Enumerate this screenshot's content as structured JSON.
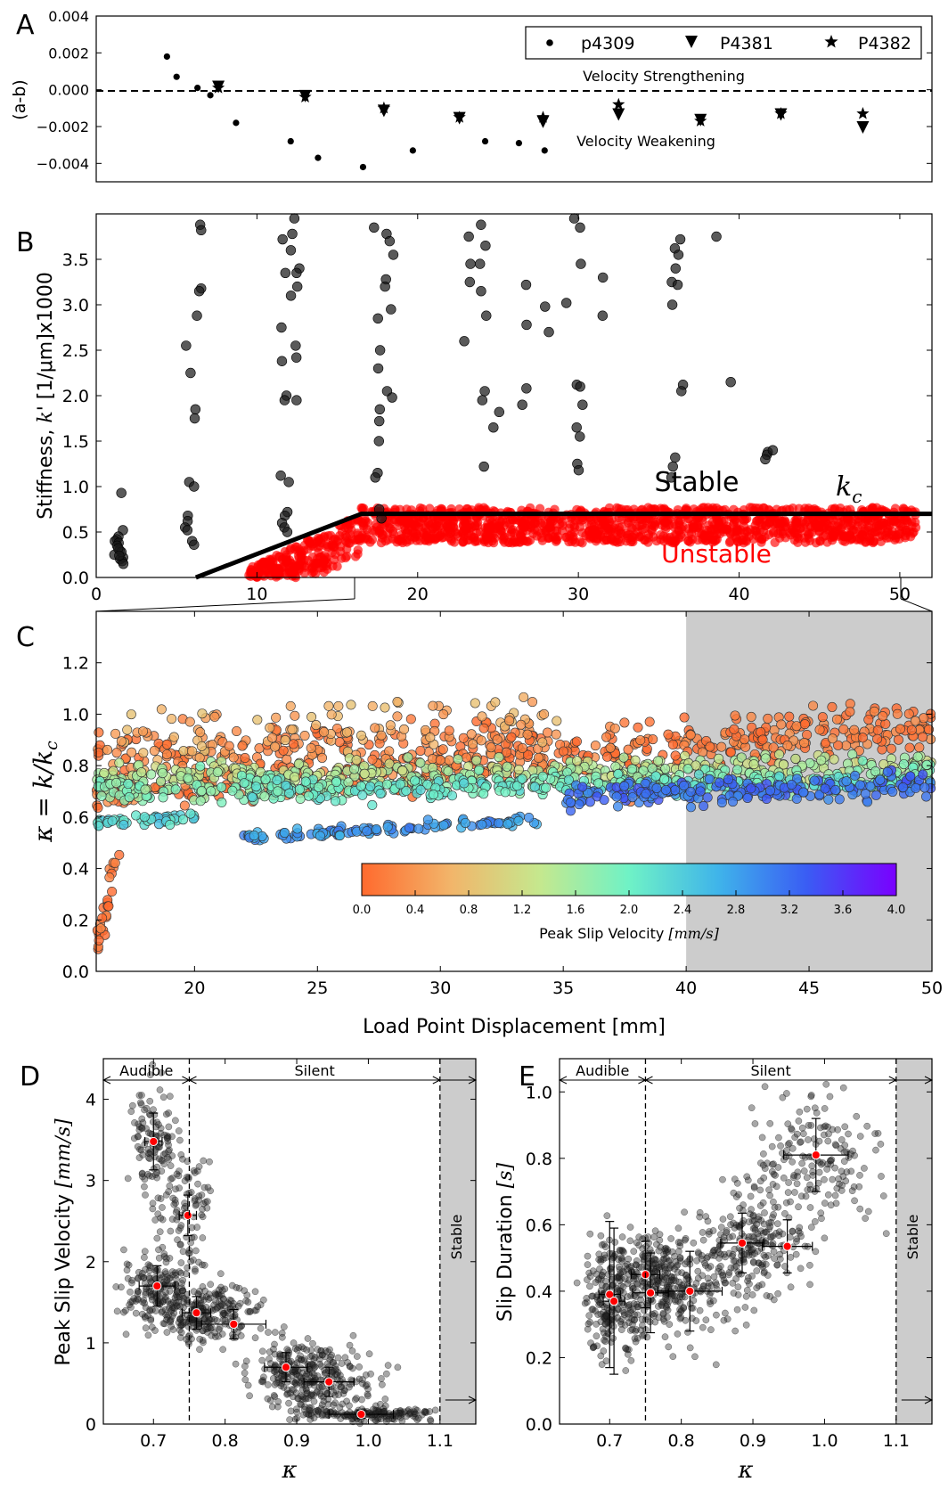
{
  "colors": {
    "black_points": "#222222",
    "unstable": "#ff0000",
    "mean_marker": "#ff0000",
    "shade": "#cccccc",
    "colormap": [
      "#ff6a2e",
      "#f2b56a",
      "#c5e88e",
      "#6ff2c6",
      "#3fb4ea",
      "#3a5cf4",
      "#7a00ff"
    ]
  },
  "chart_data": [
    {
      "panel": "A",
      "type": "scatter",
      "ylabel": "(a-b)",
      "xlim": [
        0,
        52
      ],
      "ylim": [
        -0.005,
        0.004
      ],
      "yticks": [
        "0.004",
        "0.002",
        "0.000",
        "−0.002",
        "−0.004"
      ],
      "reference_line": 0,
      "annotations": [
        "Velocity Strengthening",
        "Velocity Weakening"
      ],
      "legend": {
        "placement": "top-right",
        "entries": [
          "p4309",
          "P4381",
          "P4382"
        ]
      },
      "series": [
        {
          "name": "p4309",
          "marker": "circle",
          "x": [
            4.4,
            5.0,
            6.3,
            7.1,
            8.7,
            12.1,
            13.8,
            16.6,
            19.7,
            24.2,
            26.3,
            27.9
          ],
          "y": [
            0.0018,
            0.0007,
            0.0001,
            -0.0003,
            -0.0018,
            -0.0028,
            -0.0037,
            -0.0042,
            -0.0033,
            -0.0028,
            -0.0029,
            -0.0033
          ]
        },
        {
          "name": "P4381",
          "marker": "triangle-down",
          "x": [
            7.6,
            13.0,
            17.9,
            22.6,
            27.8,
            32.5,
            37.6,
            42.6,
            47.7
          ],
          "y": [
            0.0002,
            -0.0003,
            -0.0011,
            -0.0015,
            -0.0017,
            -0.0013,
            -0.0016,
            -0.0013,
            -0.002
          ]
        },
        {
          "name": "P4382",
          "marker": "star",
          "x": [
            7.6,
            13.0,
            17.9,
            22.6,
            27.8,
            32.5,
            37.6,
            42.6,
            47.7
          ],
          "y": [
            0.0001,
            -0.0004,
            -0.001,
            -0.0015,
            -0.0015,
            -0.0008,
            -0.0017,
            -0.0013,
            -0.0013
          ]
        }
      ]
    },
    {
      "panel": "B",
      "type": "scatter",
      "ylabel": "Stiffness, k' [1/μm]x1000",
      "xlim": [
        0,
        52
      ],
      "ylim": [
        0,
        4.0
      ],
      "xticks": [
        "0",
        "10",
        "20",
        "30",
        "40",
        "50"
      ],
      "yticks": [
        "0.0",
        "0.5",
        "1.0",
        "1.5",
        "2.0",
        "2.5",
        "3.0",
        "3.5"
      ],
      "labels": [
        "Stable",
        "Unstable"
      ],
      "kc_label": "k_c",
      "kc_line": {
        "x": [
          6.2,
          16.5,
          52
        ],
        "y": [
          0.0,
          0.7,
          0.7
        ]
      },
      "stable_groups": [
        {
          "x": 1.4,
          "y": [
            0.93,
            0.52,
            0.45,
            0.42,
            0.4,
            0.38,
            0.35,
            0.3,
            0.25,
            0.22,
            0.2,
            0.18,
            0.15,
            0.28,
            0.32,
            0.24
          ]
        },
        {
          "x": 5.8,
          "y": [
            2.55,
            2.25,
            1.05,
            1.0,
            0.68,
            0.62,
            0.55,
            0.52,
            0.4,
            0.36
          ]
        },
        {
          "x": 6.3,
          "y": [
            3.88,
            3.82,
            3.18,
            3.15,
            2.88,
            1.85,
            1.75
          ]
        },
        {
          "x": 11.7,
          "y": [
            3.72,
            3.35,
            2.75,
            2.38,
            2.0,
            1.95,
            1.12,
            1.05,
            0.72,
            0.68,
            0.6,
            0.55,
            0.5
          ]
        },
        {
          "x": 12.4,
          "y": [
            3.95,
            3.78,
            3.6,
            3.4,
            3.35,
            3.2,
            3.1,
            2.55,
            2.42,
            1.95
          ]
        },
        {
          "x": 17.5,
          "y": [
            3.85,
            2.85,
            2.5,
            2.3,
            1.85,
            1.72,
            1.5,
            1.15,
            1.1,
            0.75,
            0.65
          ]
        },
        {
          "x": 18.2,
          "y": [
            3.78,
            3.7,
            3.55,
            3.28,
            3.2,
            2.95,
            2.05,
            1.98
          ]
        },
        {
          "x": 23.0,
          "y": [
            3.75,
            3.45,
            3.25,
            2.6
          ]
        },
        {
          "x": 24.0,
          "y": [
            3.88,
            3.65,
            3.45,
            3.15,
            2.88,
            2.05,
            1.95,
            1.22
          ]
        },
        {
          "x": 24.9,
          "y": [
            1.82,
            1.65
          ]
        },
        {
          "x": 26.5,
          "y": [
            3.22,
            2.78,
            2.08,
            1.9
          ]
        },
        {
          "x": 28.2,
          "y": [
            2.98,
            2.7
          ]
        },
        {
          "x": 29.4,
          "y": [
            3.02
          ]
        },
        {
          "x": 30.0,
          "y": [
            3.95,
            3.85,
            3.45,
            2.12,
            2.1,
            1.9,
            1.65,
            1.55,
            1.25,
            1.18
          ]
        },
        {
          "x": 31.8,
          "y": [
            3.3,
            2.88
          ]
        },
        {
          "x": 35.8,
          "y": [
            3.62,
            3.4,
            3.25,
            3.0,
            1.32,
            1.22,
            1.1
          ]
        },
        {
          "x": 36.3,
          "y": [
            3.72,
            3.55,
            3.22,
            2.12,
            2.05
          ]
        },
        {
          "x": 38.5,
          "y": [
            3.75
          ]
        },
        {
          "x": 39.5,
          "y": [
            2.15
          ]
        },
        {
          "x": 41.5,
          "y": [
            1.38,
            1.35,
            1.3
          ]
        },
        {
          "x": 42.2,
          "y": [
            1.4
          ]
        }
      ],
      "unstable_band": {
        "x_start": 9.5,
        "x_ramp_end": 16.5,
        "x_end": 51,
        "y_min": 0.38,
        "y_max": 0.77,
        "count": 1500
      }
    },
    {
      "panel": "C",
      "type": "scatter",
      "ylabel": "κ = k/k_c",
      "xlabel": "Load Point Displacement [mm]",
      "xlim": [
        16,
        50
      ],
      "ylim": [
        0,
        1.4
      ],
      "xticks": [
        "20",
        "25",
        "30",
        "35",
        "40",
        "45",
        "50"
      ],
      "yticks": [
        "0.0",
        "0.2",
        "0.4",
        "0.6",
        "0.8",
        "1.0",
        "1.2"
      ],
      "shaded_region": [
        40,
        50
      ],
      "colorbar": {
        "label": "Peak Slip Velocity [mm/s]",
        "range": [
          0,
          4.0
        ],
        "ticks": [
          "0.0",
          "0.4",
          "0.8",
          "1.2",
          "1.6",
          "2.0",
          "2.4",
          "2.8",
          "3.2",
          "3.6",
          "4.0"
        ]
      },
      "bands": [
        {
          "v": 0.1,
          "x": [
            16,
            50
          ],
          "y_start": 0.7,
          "y_end": 0.95,
          "noise": 0.045,
          "count": 520
        },
        {
          "v": 0.2,
          "x": [
            16,
            34
          ],
          "y_start": 0.86,
          "y_end": 0.92,
          "noise": 0.04,
          "count": 150
        },
        {
          "v": 0.6,
          "x": [
            17,
            35
          ],
          "y_start": 0.92,
          "y_end": 0.98,
          "noise": 0.06,
          "count": 100
        },
        {
          "v": 1.4,
          "x": [
            16,
            50
          ],
          "y_start": 0.76,
          "y_end": 0.8,
          "noise": 0.025,
          "count": 320
        },
        {
          "v": 1.8,
          "x": [
            16,
            50
          ],
          "y_start": 0.7,
          "y_end": 0.76,
          "noise": 0.025,
          "count": 320
        },
        {
          "v": 2.3,
          "x": [
            16,
            20
          ],
          "y_start": 0.58,
          "y_end": 0.6,
          "noise": 0.01,
          "count": 45
        },
        {
          "v": 2.1,
          "x": [
            22,
            50
          ],
          "y_start": 0.7,
          "y_end": 0.74,
          "noise": 0.02,
          "count": 220
        },
        {
          "v": 2.9,
          "x": [
            22,
            34
          ],
          "y_start": 0.52,
          "y_end": 0.59,
          "noise": 0.01,
          "count": 110
        },
        {
          "v": 3.2,
          "x": [
            35,
            50
          ],
          "y_start": 0.68,
          "y_end": 0.72,
          "noise": 0.025,
          "count": 200
        },
        {
          "v": 0.0,
          "x": [
            16,
            17
          ],
          "y_start": 0.08,
          "y_end": 0.55,
          "noise": 0.05,
          "count": 25
        }
      ]
    },
    {
      "panel": "D",
      "type": "scatter",
      "xlabel": "κ",
      "ylabel": "Peak Slip Velocity [mm/s]",
      "xlim": [
        0.63,
        1.15
      ],
      "ylim": [
        0,
        4.5
      ],
      "xticks": [
        "0.7",
        "0.8",
        "0.9",
        "1.0",
        "1.1"
      ],
      "yticks": [
        "0",
        "1",
        "2",
        "3",
        "4"
      ],
      "regions": [
        "Audible",
        "Silent",
        "Stable"
      ],
      "boundaries": [
        0.75,
        1.1
      ],
      "means": [
        {
          "x": 0.7,
          "y": 3.48,
          "xerr": 0.012,
          "yerr": 0.35
        },
        {
          "x": 0.748,
          "y": 2.57,
          "xerr": 0.012,
          "yerr": 0.25
        },
        {
          "x": 0.705,
          "y": 1.7,
          "xerr": 0.025,
          "yerr": 0.25
        },
        {
          "x": 0.76,
          "y": 1.37,
          "xerr": 0.02,
          "yerr": 0.2
        },
        {
          "x": 0.812,
          "y": 1.23,
          "xerr": 0.045,
          "yerr": 0.18
        },
        {
          "x": 0.885,
          "y": 0.7,
          "xerr": 0.03,
          "yerr": 0.18
        },
        {
          "x": 0.945,
          "y": 0.52,
          "xerr": 0.035,
          "yerr": 0.18
        },
        {
          "x": 0.99,
          "y": 0.12,
          "xerr": 0.045,
          "yerr": 0.05
        }
      ],
      "clouds": [
        {
          "x": 0.7,
          "y": 3.5,
          "sx": 0.015,
          "sy": 0.35,
          "count": 110
        },
        {
          "x": 0.745,
          "y": 2.55,
          "sx": 0.018,
          "sy": 0.35,
          "count": 100
        },
        {
          "x": 0.705,
          "y": 1.65,
          "sx": 0.025,
          "sy": 0.22,
          "count": 170
        },
        {
          "x": 0.775,
          "y": 1.35,
          "sx": 0.035,
          "sy": 0.18,
          "count": 230
        },
        {
          "x": 0.9,
          "y": 0.65,
          "sx": 0.035,
          "sy": 0.2,
          "count": 200
        },
        {
          "x": 0.945,
          "y": 0.45,
          "sx": 0.04,
          "sy": 0.2,
          "count": 120
        },
        {
          "x": 1.0,
          "y": 0.12,
          "sx": 0.05,
          "sy": 0.04,
          "count": 160
        }
      ]
    },
    {
      "panel": "E",
      "type": "scatter",
      "xlabel": "κ",
      "ylabel": "Slip Duration [s]",
      "xlim": [
        0.63,
        1.15
      ],
      "ylim": [
        0,
        1.1
      ],
      "xticks": [
        "0.7",
        "0.8",
        "0.9",
        "1.0",
        "1.1"
      ],
      "yticks": [
        "0.0",
        "0.2",
        "0.4",
        "0.6",
        "0.8",
        "1.0"
      ],
      "regions": [
        "Audible",
        "Silent",
        "Stable"
      ],
      "boundaries": [
        0.75,
        1.1
      ],
      "means": [
        {
          "x": 0.7,
          "y": 0.39,
          "xerr": 0.015,
          "yerr": 0.22
        },
        {
          "x": 0.706,
          "y": 0.37,
          "xerr": 0.015,
          "yerr": 0.22
        },
        {
          "x": 0.75,
          "y": 0.45,
          "xerr": 0.02,
          "yerr": 0.1
        },
        {
          "x": 0.757,
          "y": 0.395,
          "xerr": 0.025,
          "yerr": 0.12
        },
        {
          "x": 0.812,
          "y": 0.4,
          "xerr": 0.045,
          "yerr": 0.12
        },
        {
          "x": 0.885,
          "y": 0.545,
          "xerr": 0.03,
          "yerr": 0.09
        },
        {
          "x": 0.948,
          "y": 0.535,
          "xerr": 0.035,
          "yerr": 0.08
        },
        {
          "x": 0.988,
          "y": 0.81,
          "xerr": 0.045,
          "yerr": 0.11
        }
      ],
      "clouds": [
        {
          "x": 0.7,
          "y": 0.38,
          "sx": 0.022,
          "sy": 0.09,
          "count": 220
        },
        {
          "x": 0.76,
          "y": 0.42,
          "sx": 0.03,
          "sy": 0.08,
          "count": 220
        },
        {
          "x": 0.82,
          "y": 0.42,
          "sx": 0.04,
          "sy": 0.08,
          "count": 150
        },
        {
          "x": 0.9,
          "y": 0.54,
          "sx": 0.035,
          "sy": 0.07,
          "count": 200
        },
        {
          "x": 0.99,
          "y": 0.78,
          "sx": 0.05,
          "sy": 0.1,
          "count": 180
        }
      ]
    }
  ]
}
